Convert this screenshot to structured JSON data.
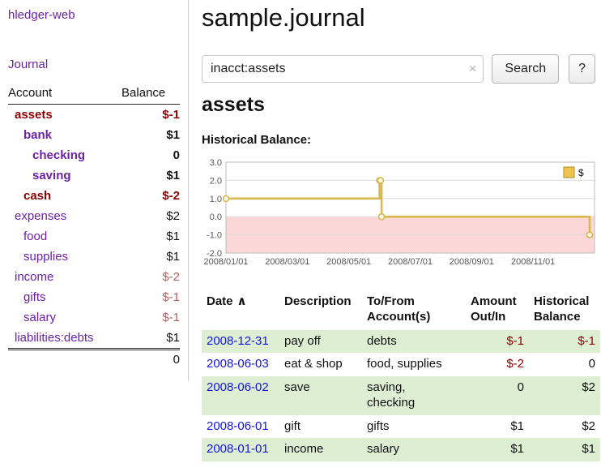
{
  "colors": {
    "purple": "#6b21a8",
    "blue": "#1414e0",
    "red": "#8b0000",
    "soft_red": "#b26262",
    "green_row": "#ddeed3",
    "chart_line": "#d8b84e",
    "chart_below": "#fbd7d7",
    "grid": "#dcdcdc",
    "legend_fill": "#eec34f"
  },
  "sidebar": {
    "app_title": "hledger-web",
    "journal_link": "Journal",
    "accounts_table": {
      "col_account": "Account",
      "col_balance": "Balance",
      "rows": [
        {
          "name": "assets",
          "balance": "$-1",
          "depth": 1,
          "bold": true,
          "name_neg": true
        },
        {
          "name": "bank",
          "balance": "$1",
          "depth": 2,
          "bold": true
        },
        {
          "name": "checking",
          "balance": "0",
          "depth": 3,
          "bold": true
        },
        {
          "name": "saving",
          "balance": "$1",
          "depth": 3,
          "bold": true
        },
        {
          "name": "cash",
          "balance": "$-2",
          "depth": 2,
          "bold": true,
          "name_neg": true
        },
        {
          "name": "expenses",
          "balance": "$2",
          "depth": 1
        },
        {
          "name": "food",
          "balance": "$1",
          "depth": 2
        },
        {
          "name": "supplies",
          "balance": "$1",
          "depth": 2
        },
        {
          "name": "income",
          "balance": "$-2",
          "depth": 1
        },
        {
          "name": "gifts",
          "balance": "$-1",
          "depth": 2
        },
        {
          "name": "salary",
          "balance": "$-1",
          "depth": 2
        },
        {
          "name": "liabilities:debts",
          "balance": "$1",
          "depth": 1
        }
      ],
      "total": "0"
    }
  },
  "main": {
    "title": "sample.journal",
    "search": {
      "value": "inacct:assets",
      "clear_icon": "×",
      "button_label": "Search",
      "help_label": "?"
    },
    "account_heading": "assets",
    "chart_label": "Historical Balance:"
  },
  "chart_data": {
    "type": "line",
    "step": true,
    "title": "Historical Balance",
    "series": [
      {
        "name": "$",
        "points": [
          [
            "2008-01-01",
            1
          ],
          [
            "2008-06-01",
            2
          ],
          [
            "2008-06-02",
            2
          ],
          [
            "2008-06-03",
            0
          ],
          [
            "2008-12-31",
            -1
          ]
        ]
      }
    ],
    "ylim": [
      -2,
      3
    ],
    "yticks": [
      3,
      2,
      1,
      0,
      -1,
      -2
    ],
    "xticks": [
      "2008/01/01",
      "2008/03/01",
      "2008/05/01",
      "2008/07/01",
      "2008/09/01",
      "2008/11/01"
    ],
    "legend": {
      "label": "$",
      "position": "top-right"
    },
    "grid": true,
    "below_zero_shaded": true
  },
  "register": {
    "sort_icon": "∧",
    "headers": {
      "date": "Date",
      "description": "Description",
      "account": "To/From Account(s)",
      "amount": "Amount Out/In",
      "balance": "Historical Balance"
    },
    "rows": [
      {
        "date": "2008-12-31",
        "description": "pay off",
        "account": "debts",
        "amount": "$-1",
        "balance": "$-1"
      },
      {
        "date": "2008-06-03",
        "description": "eat & shop",
        "account": "food, supplies",
        "amount": "$-2",
        "balance": "0"
      },
      {
        "date": "2008-06-02",
        "description": "save",
        "account": "saving,\nchecking",
        "amount": "0",
        "balance": "$2"
      },
      {
        "date": "2008-06-01",
        "description": "gift",
        "account": "gifts",
        "amount": "$1",
        "balance": "$2"
      },
      {
        "date": "2008-01-01",
        "description": "income",
        "account": "salary",
        "amount": "$1",
        "balance": "$1"
      }
    ]
  }
}
